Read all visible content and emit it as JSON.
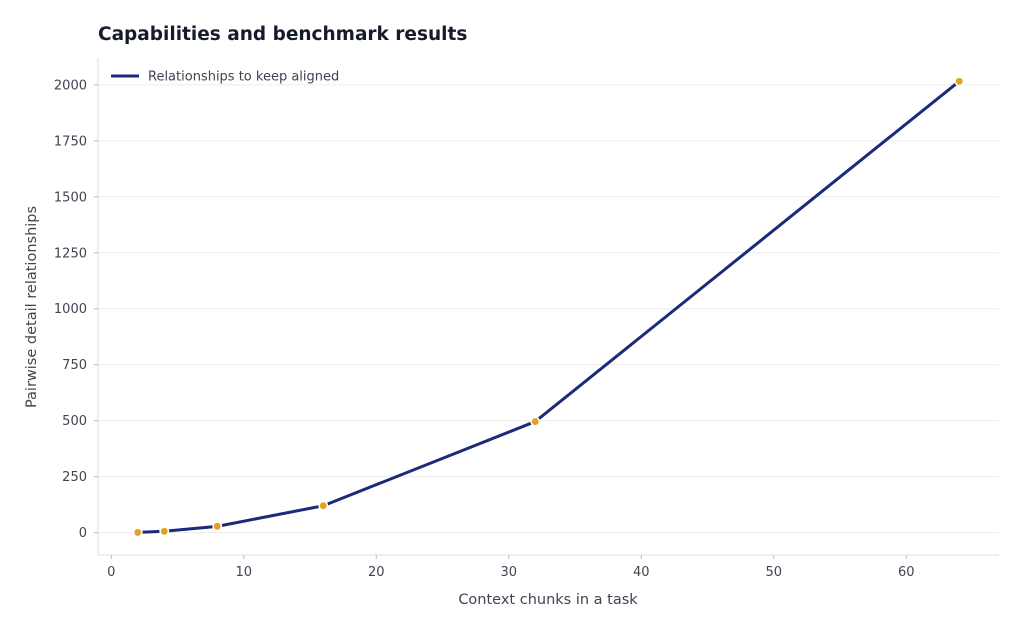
{
  "chart_data": {
    "type": "line",
    "title": "Capabilities and benchmark results",
    "xlabel": "Context chunks in a task",
    "ylabel": "Pairwise detail relationships",
    "xlim": [
      -1,
      67
    ],
    "ylim": [
      -100,
      2120
    ],
    "xticks": [
      0,
      10,
      20,
      30,
      40,
      50,
      60
    ],
    "yticks": [
      0,
      250,
      500,
      750,
      1000,
      1250,
      1500,
      1750,
      2000
    ],
    "grid": "horizontal",
    "legend_position": "top-left",
    "series": [
      {
        "name": "Relationships to keep aligned",
        "x": [
          2,
          4,
          8,
          16,
          32,
          64
        ],
        "y": [
          1,
          6,
          28,
          120,
          496,
          2016
        ],
        "color": "#1c2a7a",
        "marker_color": "#e3a11e"
      }
    ]
  }
}
